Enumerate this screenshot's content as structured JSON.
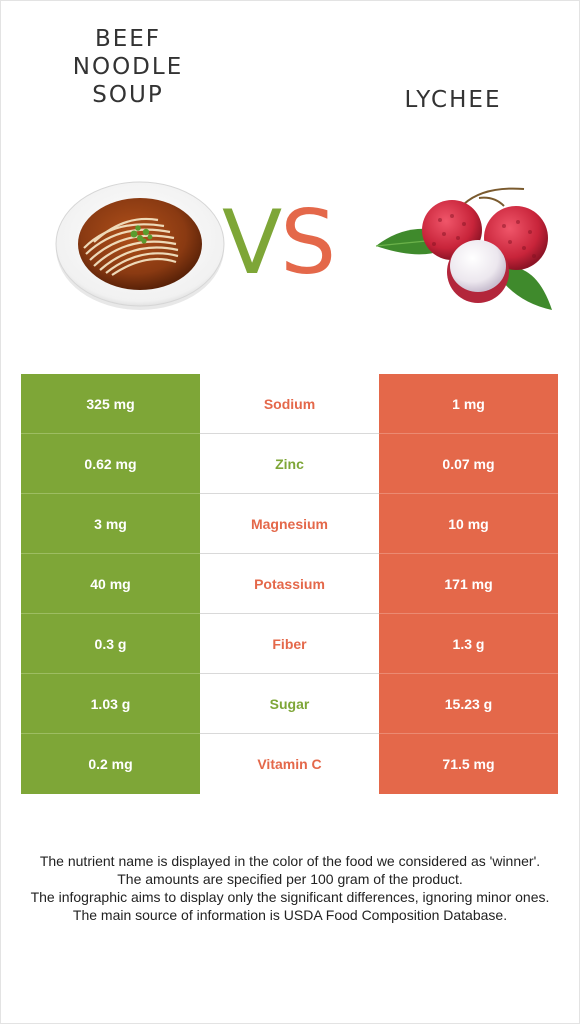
{
  "food_left": {
    "name": "BEEF\nNOODLE\nSOUP",
    "lines": [
      "BEEF",
      "NOODLE",
      "SOUP"
    ],
    "color": "#7ea637"
  },
  "food_right": {
    "name": "LYCHEE",
    "color": "#e4684a"
  },
  "vs": {
    "v": "V",
    "s": "S"
  },
  "rows": [
    {
      "left": "325 mg",
      "nutrient": "Sodium",
      "right": "1 mg",
      "winner": "right"
    },
    {
      "left": "0.62 mg",
      "nutrient": "Zinc",
      "right": "0.07 mg",
      "winner": "left"
    },
    {
      "left": "3 mg",
      "nutrient": "Magnesium",
      "right": "10 mg",
      "winner": "right"
    },
    {
      "left": "40 mg",
      "nutrient": "Potassium",
      "right": "171 mg",
      "winner": "right"
    },
    {
      "left": "0.3 g",
      "nutrient": "Fiber",
      "right": "1.3 g",
      "winner": "right"
    },
    {
      "left": "1.03 g",
      "nutrient": "Sugar",
      "right": "15.23 g",
      "winner": "left"
    },
    {
      "left": "0.2 mg",
      "nutrient": "Vitamin C",
      "right": "71.5 mg",
      "winner": "right"
    }
  ],
  "footer": [
    "The nutrient name is displayed in the color of the food we considered as 'winner'.",
    "The amounts are specified per 100 gram of the product.",
    "The infographic aims to display only the significant differences, ignoring minor ones.",
    "The main source of information is USDA Food Composition Database."
  ]
}
